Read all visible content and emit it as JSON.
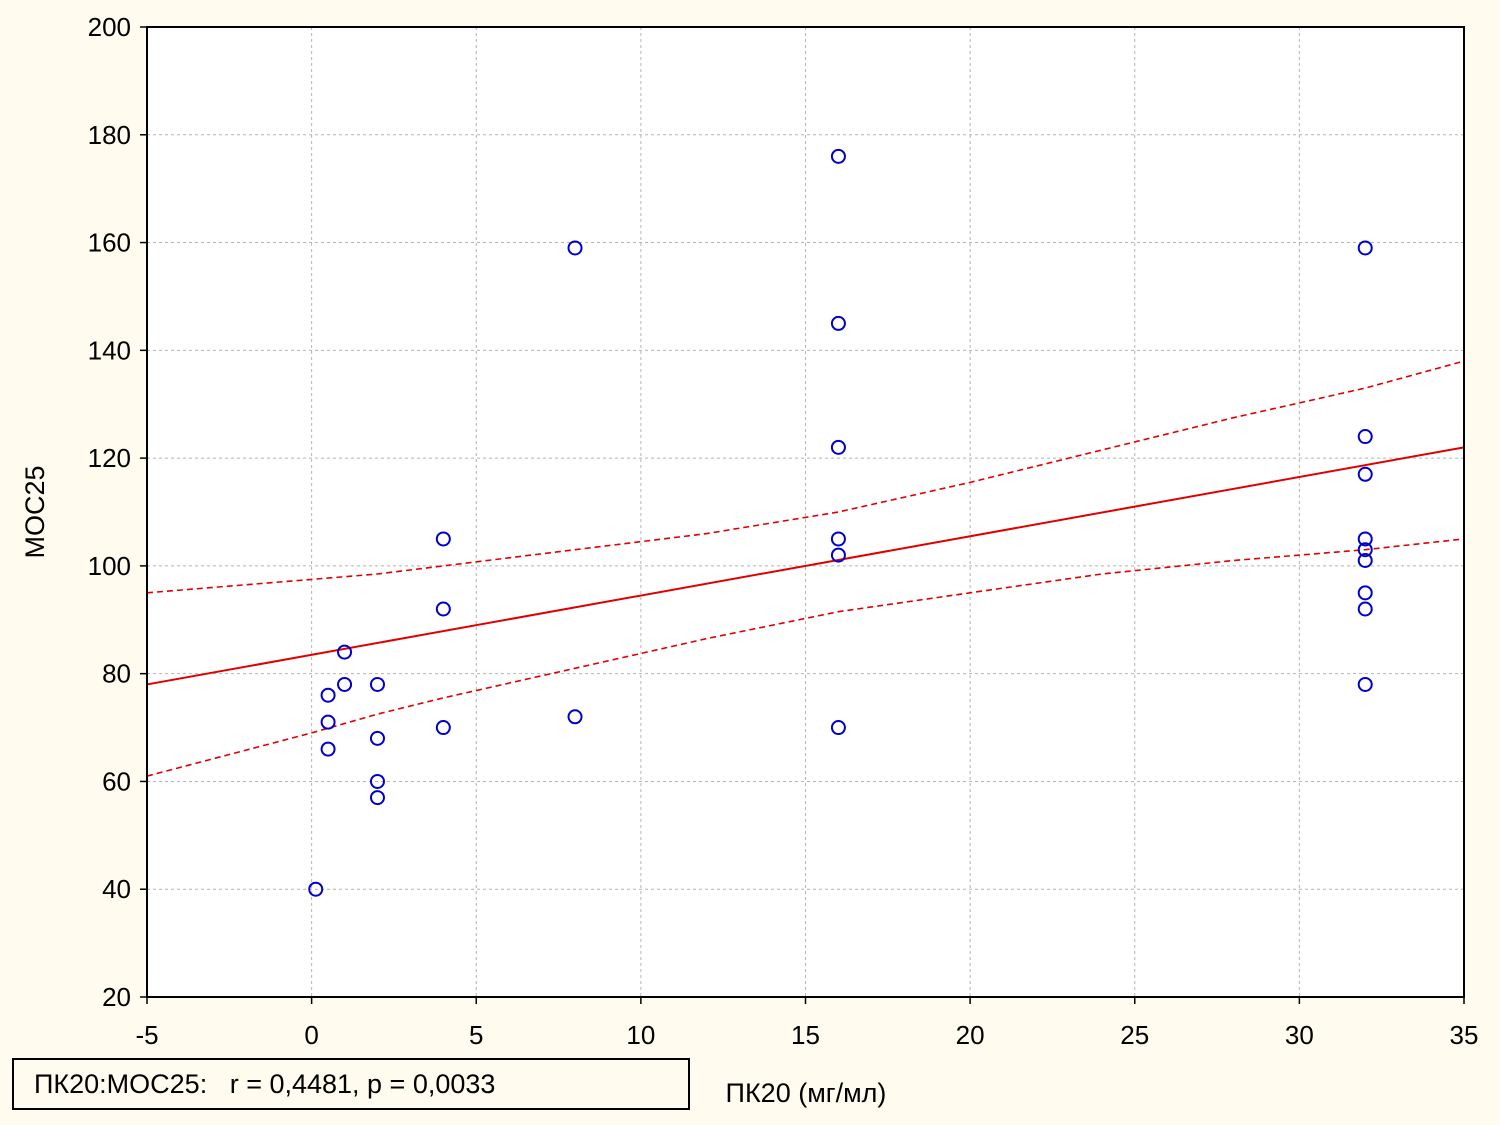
{
  "chart_data": {
    "type": "scatter",
    "xlabel": "ПК20 (мг/мл)",
    "ylabel": "МОС25",
    "xlim": [
      -5,
      35
    ],
    "ylim": [
      20,
      200
    ],
    "xticks": [
      -5,
      0,
      5,
      10,
      15,
      20,
      25,
      30,
      35
    ],
    "yticks": [
      20,
      40,
      60,
      80,
      100,
      120,
      140,
      160,
      180,
      200
    ],
    "grid": true,
    "annotation": "ПК20:МОС25:   r = 0,4481, p = 0,0033",
    "points": [
      {
        "x": 0.125,
        "y": 40
      },
      {
        "x": 0.5,
        "y": 76
      },
      {
        "x": 0.5,
        "y": 71
      },
      {
        "x": 0.5,
        "y": 66
      },
      {
        "x": 1,
        "y": 84
      },
      {
        "x": 1,
        "y": 78
      },
      {
        "x": 2,
        "y": 78
      },
      {
        "x": 2,
        "y": 68
      },
      {
        "x": 2,
        "y": 60
      },
      {
        "x": 2,
        "y": 57
      },
      {
        "x": 4,
        "y": 105
      },
      {
        "x": 4,
        "y": 92
      },
      {
        "x": 4,
        "y": 70
      },
      {
        "x": 8,
        "y": 159
      },
      {
        "x": 8,
        "y": 72
      },
      {
        "x": 16,
        "y": 176
      },
      {
        "x": 16,
        "y": 145
      },
      {
        "x": 16,
        "y": 122
      },
      {
        "x": 16,
        "y": 105
      },
      {
        "x": 16,
        "y": 102
      },
      {
        "x": 16,
        "y": 70
      },
      {
        "x": 32,
        "y": 159
      },
      {
        "x": 32,
        "y": 124
      },
      {
        "x": 32,
        "y": 117
      },
      {
        "x": 32,
        "y": 105
      },
      {
        "x": 32,
        "y": 103
      },
      {
        "x": 32,
        "y": 101
      },
      {
        "x": 32,
        "y": 95
      },
      {
        "x": 32,
        "y": 92
      },
      {
        "x": 32,
        "y": 78
      }
    ],
    "regression_line": {
      "x": [
        -5,
        35
      ],
      "y": [
        78,
        122
      ]
    },
    "confidence_upper": {
      "x": [
        -5,
        0,
        2,
        4,
        8,
        12,
        16,
        20,
        24,
        28,
        32,
        35
      ],
      "y": [
        95,
        97.5,
        98.5,
        100,
        103,
        106,
        110,
        115.5,
        121.5,
        127.5,
        133,
        138
      ]
    },
    "confidence_lower": {
      "x": [
        -5,
        0,
        2,
        4,
        8,
        12,
        16,
        20,
        24,
        28,
        32,
        35
      ],
      "y": [
        61,
        69,
        72.5,
        75.5,
        81,
        86.5,
        91.5,
        95,
        98.5,
        101,
        103,
        105
      ]
    },
    "colors": {
      "points": "#0000cc",
      "fit": "#e00000",
      "confidence": "#e00000",
      "grid": "#b4b4b4",
      "background": "#fffbef",
      "plot_area": "#ffffff"
    }
  }
}
